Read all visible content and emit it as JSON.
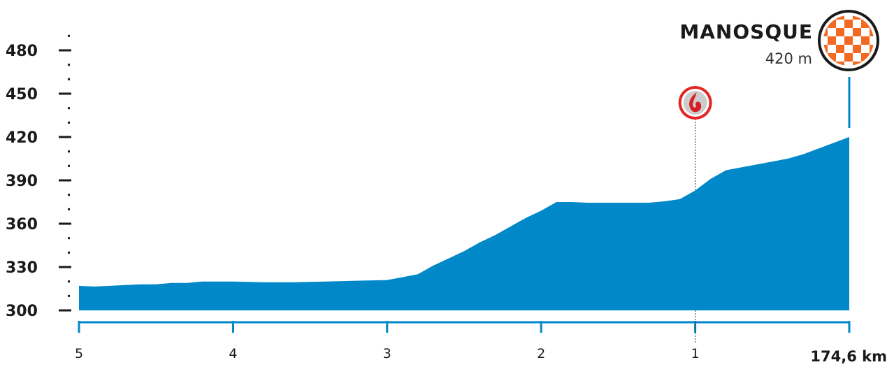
{
  "chart_data": {
    "type": "area",
    "title": "",
    "xlabel": "",
    "ylabel": "",
    "ylim": [
      300,
      480
    ],
    "y_ticks": [
      "300",
      "330",
      "360",
      "390",
      "420",
      "450",
      "480"
    ],
    "x_ticks": [
      "5",
      "4",
      "3",
      "2",
      "1"
    ],
    "x_end_label": "174,6 km",
    "x_range_km_to_finish": [
      5,
      0
    ],
    "series": [
      {
        "km_to_finish": [
          5.0,
          4.9,
          4.8,
          4.7,
          4.6,
          4.5,
          4.4,
          4.3,
          4.2,
          4.0,
          3.8,
          3.6,
          3.4,
          3.2,
          3.0,
          2.9,
          2.8,
          2.7,
          2.6,
          2.5,
          2.4,
          2.3,
          2.2,
          2.1,
          2.0,
          1.9,
          1.8,
          1.7,
          1.6,
          1.5,
          1.4,
          1.3,
          1.2,
          1.1,
          1.0,
          0.9,
          0.8,
          0.7,
          0.6,
          0.5,
          0.4,
          0.3,
          0.2,
          0.1,
          0.0
        ],
        "altitude_m": [
          317,
          316.5,
          317,
          317.5,
          318,
          318,
          319,
          319,
          320,
          320,
          319.5,
          319.5,
          320,
          320.5,
          321,
          323,
          325,
          331,
          336,
          341,
          347,
          352,
          358,
          364,
          369,
          375,
          375,
          374.5,
          374.5,
          374.5,
          374.5,
          374.5,
          375.5,
          377,
          383,
          391,
          397,
          399,
          401,
          403,
          405,
          408,
          412,
          416,
          420
        ]
      }
    ],
    "color": "#0088c8",
    "finish": {
      "name": "MANOSQUE",
      "altitude_label": "420 m"
    },
    "markers": [
      {
        "label": "flamme rouge",
        "km_to_finish": 1,
        "icon": "flame-icon"
      }
    ]
  }
}
